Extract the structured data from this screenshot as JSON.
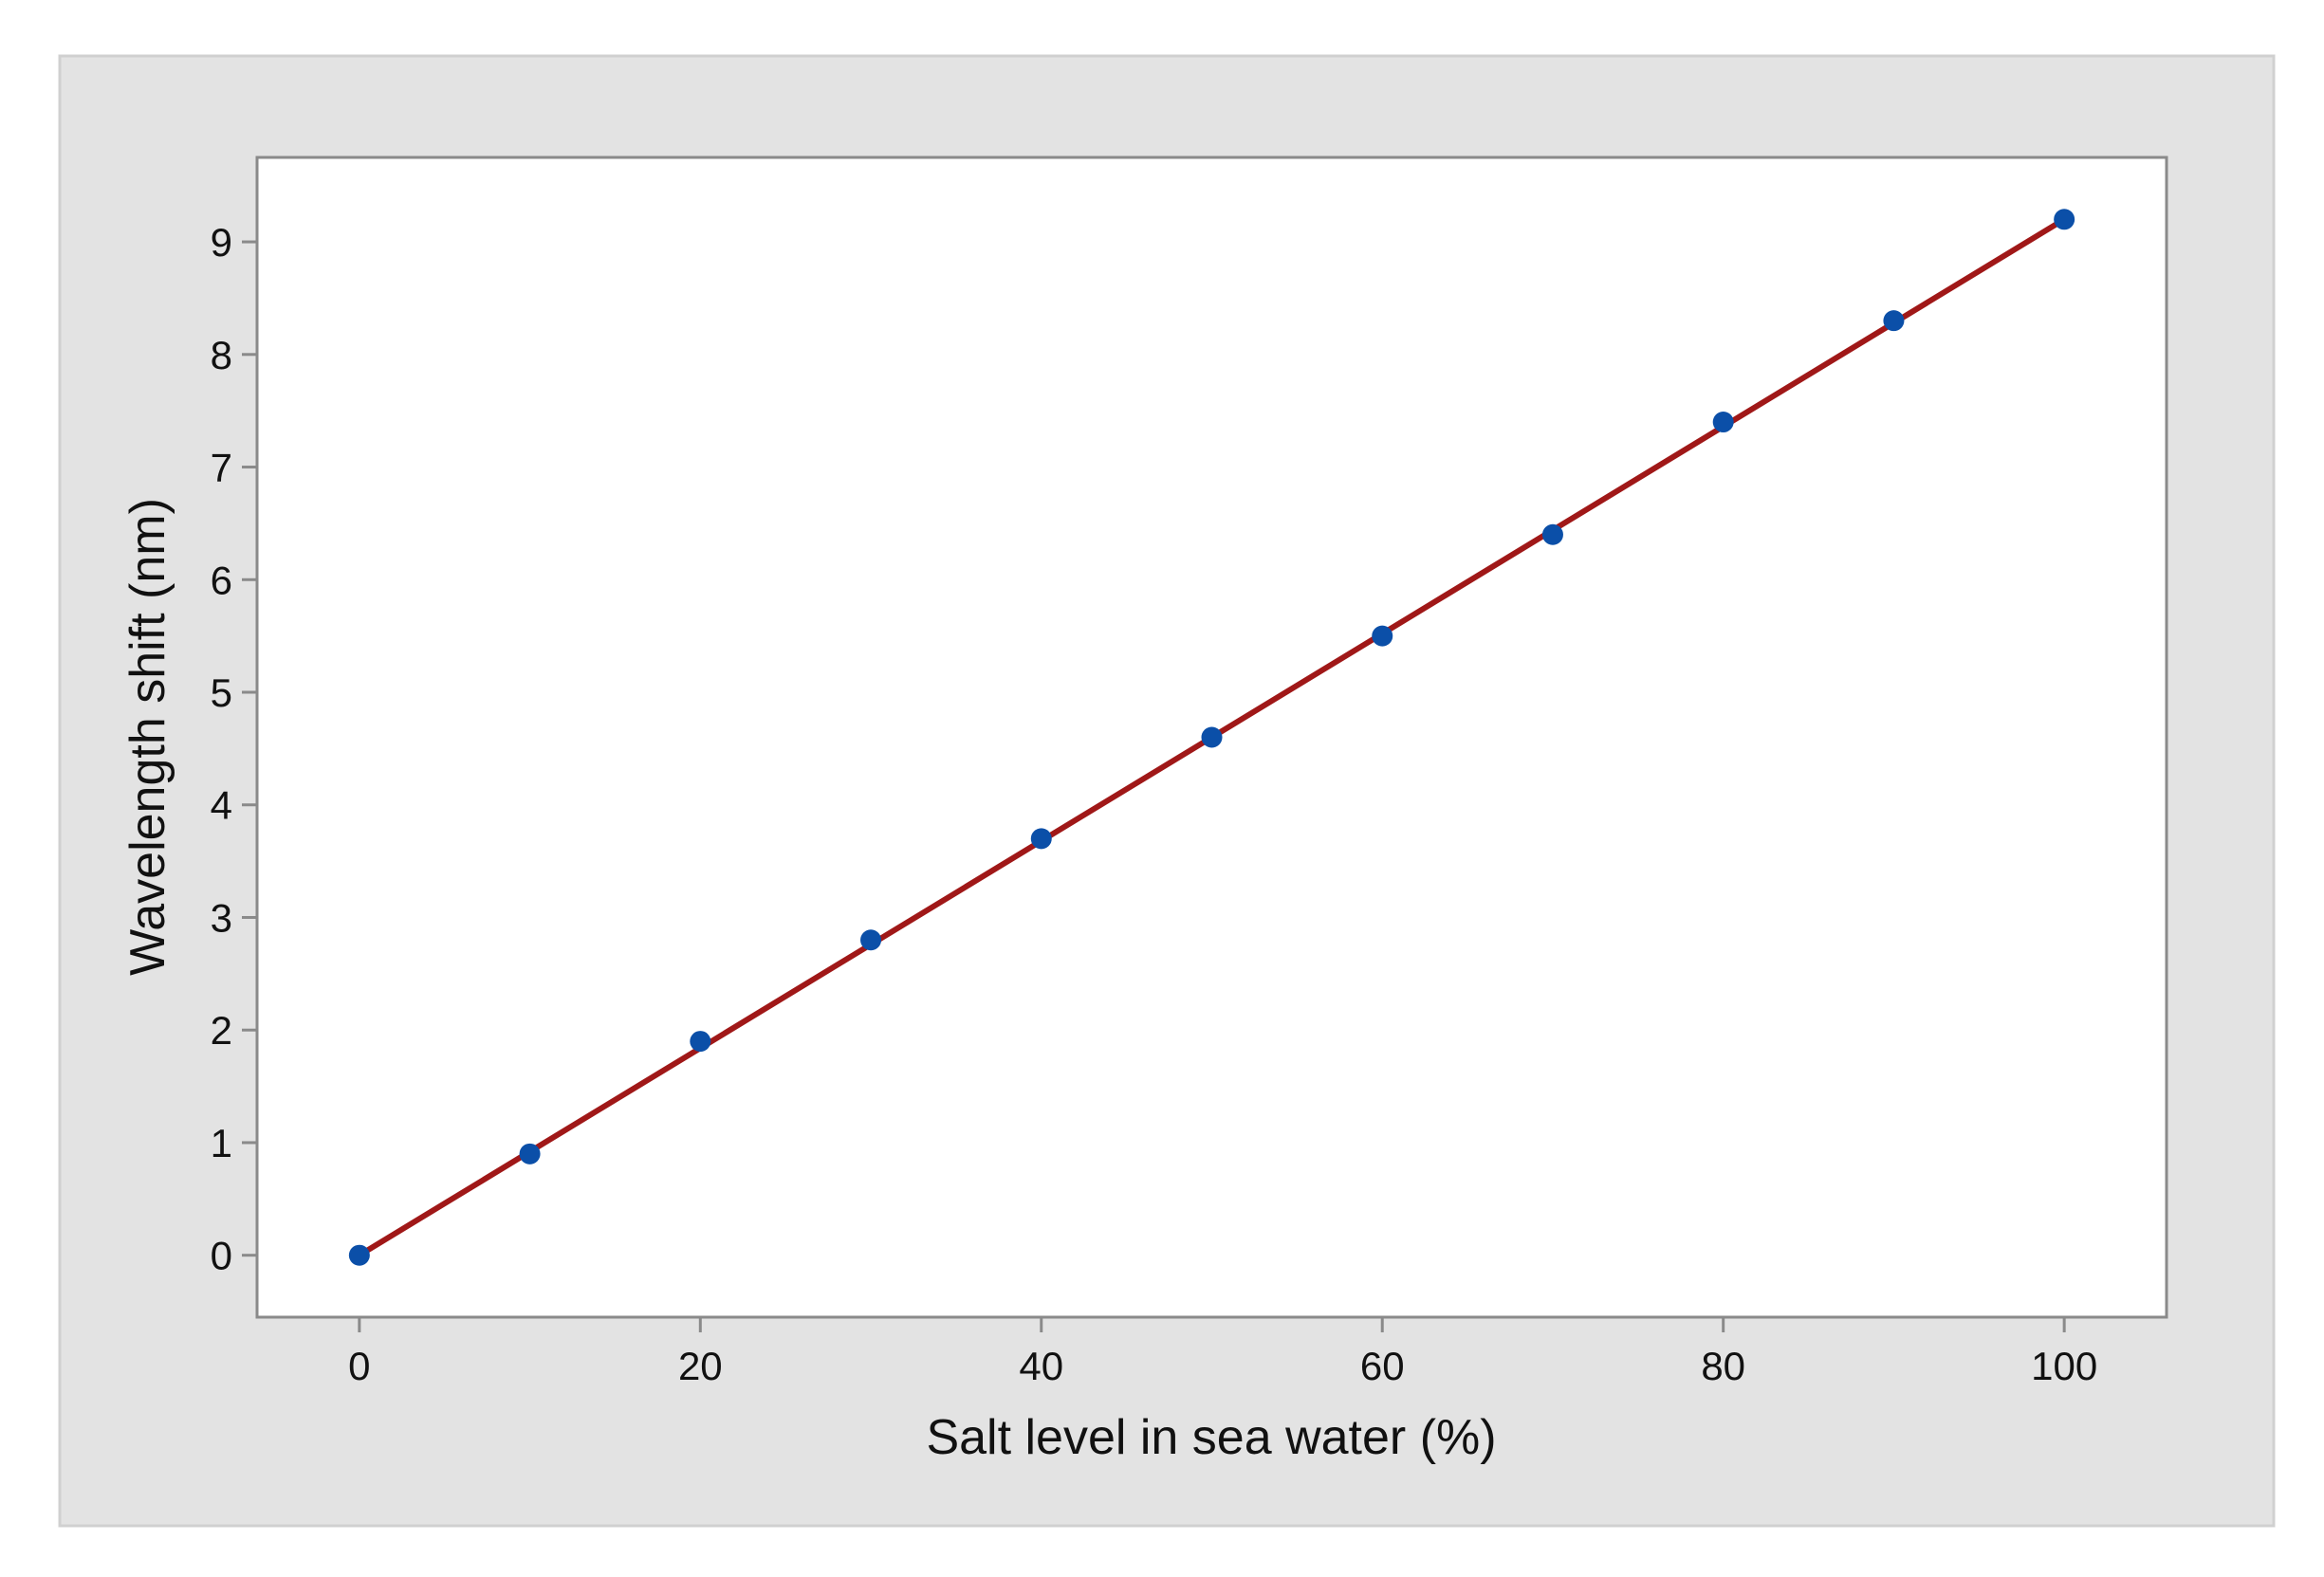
{
  "chart_data": {
    "type": "scatter",
    "title": "",
    "xlabel": "Salt level in sea water (%)",
    "ylabel": "Wavelength shift (nm)",
    "xlim": [
      -6,
      106
    ],
    "ylim": [
      -0.55,
      9.75
    ],
    "x_ticks": [
      0,
      20,
      40,
      60,
      80,
      100
    ],
    "y_ticks": [
      0,
      1,
      2,
      3,
      4,
      5,
      6,
      7,
      8,
      9
    ],
    "grid": false,
    "legend": "none",
    "series": [
      {
        "color": "#0b4fa8",
        "x": [
          0,
          10,
          20,
          30,
          40,
          50,
          60,
          70,
          80,
          90,
          100
        ],
        "y": [
          0,
          0.9,
          1.9,
          2.8,
          3.7,
          4.6,
          5.5,
          6.4,
          7.4,
          8.3,
          9.2
        ]
      }
    ],
    "fit_line": {
      "color": "#a01818",
      "x": [
        0,
        100
      ],
      "y": [
        0,
        9.2
      ]
    },
    "colors": {
      "outer_background": "#e3e3e3",
      "plot_background": "#ffffff",
      "axis": "#8a8a8a"
    }
  }
}
